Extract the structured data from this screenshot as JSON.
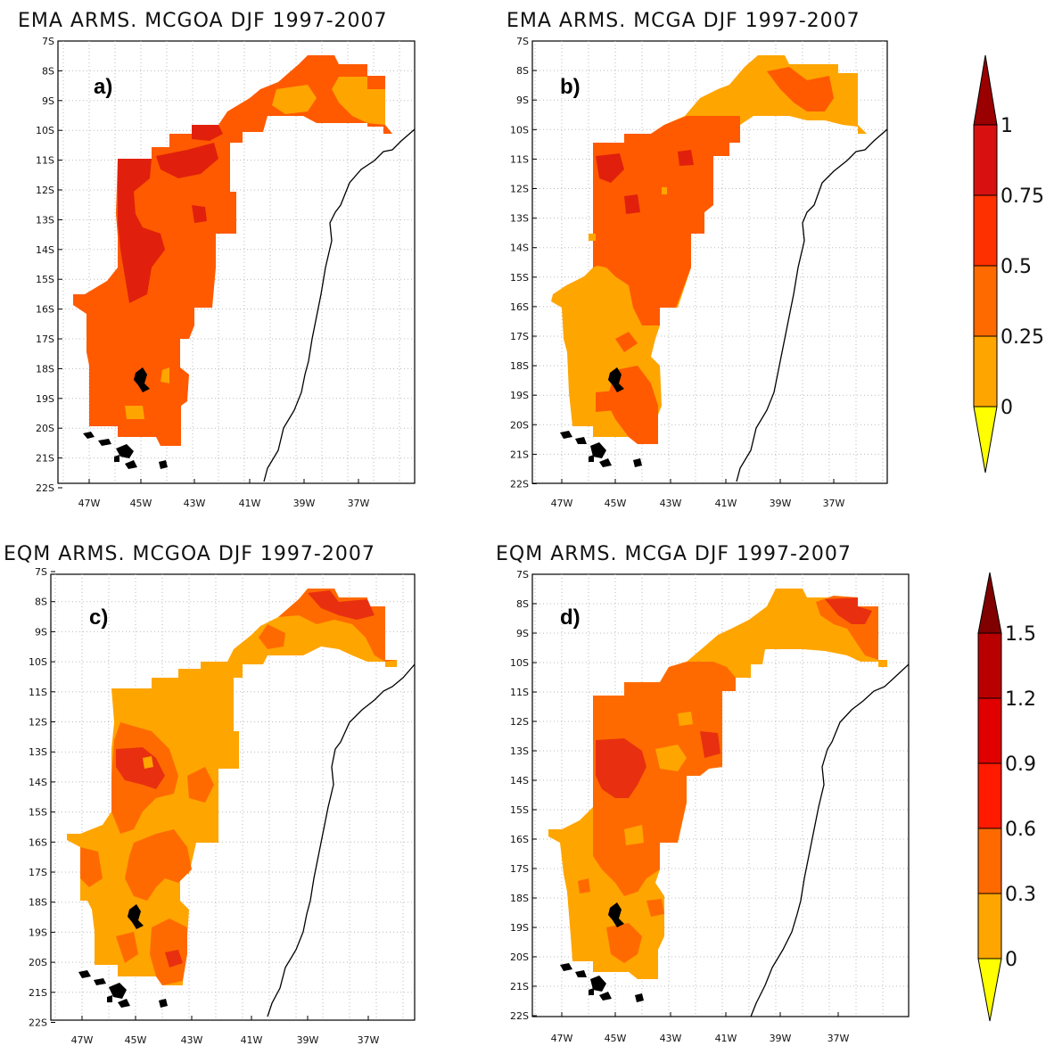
{
  "figure": {
    "panels": [
      {
        "id": "a",
        "title": "EMA ARMS. MCGOA DJF 1997-2007",
        "label": "a)",
        "scale": "top"
      },
      {
        "id": "b",
        "title": "EMA ARMS. MCGA DJF 1997-2007",
        "label": "b)",
        "scale": "top"
      },
      {
        "id": "c",
        "title": "EQM ARMS. MCGOA DJF 1997-2007",
        "label": "c)",
        "scale": "bottom"
      },
      {
        "id": "d",
        "title": "EQM ARMS. MCGA DJF 1997-2007",
        "label": "d)",
        "scale": "bottom"
      }
    ],
    "lat_labels": [
      "7S",
      "8S",
      "9S",
      "10S",
      "11S",
      "12S",
      "13S",
      "14S",
      "15S",
      "16S",
      "17S",
      "18S",
      "19S",
      "20S",
      "21S",
      "22S"
    ],
    "lon_labels": [
      "47W",
      "45W",
      "43W",
      "41W",
      "39W",
      "37W"
    ]
  },
  "colorbars": {
    "top": {
      "levels": [
        "0",
        "0.25",
        "0.5",
        "0.75",
        "1"
      ],
      "colors": [
        "#ffff00",
        "#ffa500",
        "#ff6a00",
        "#ff3000",
        "#d81010",
        "#9a0000"
      ]
    },
    "bottom": {
      "levels": [
        "0",
        "0.3",
        "0.6",
        "0.9",
        "1.2",
        "1.5"
      ],
      "colors": [
        "#ffff00",
        "#ffa500",
        "#ff6a00",
        "#ff1a00",
        "#e00000",
        "#b80000",
        "#800000"
      ]
    }
  },
  "colors": {
    "base_orange": "#ffa500",
    "mid_orange": "#ff6a00",
    "red_orange": "#ff3d00",
    "red": "#f01000",
    "dark_red": "#c00000"
  }
}
